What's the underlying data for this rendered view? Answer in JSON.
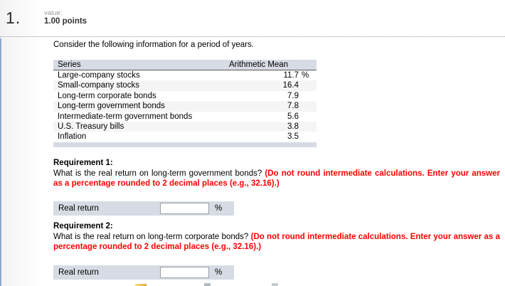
{
  "question": {
    "number": "1.",
    "value_label": "value:",
    "points": "1.00 points"
  },
  "intro": "Consider the following information for a period of years.",
  "table": {
    "headers": {
      "series": "Series",
      "mean": "Arithmetic Mean"
    },
    "rows": [
      {
        "label": "Large-company stocks",
        "value": "11.7",
        "suffix": "%"
      },
      {
        "label": "Small-company stocks",
        "value": "16.4",
        "suffix": ""
      },
      {
        "label": "Long-term corporate bonds",
        "value": "7.9",
        "suffix": ""
      },
      {
        "label": "Long-term government bonds",
        "value": "7.8",
        "suffix": ""
      },
      {
        "label": "Intermediate-term government bonds",
        "value": "5.6",
        "suffix": ""
      },
      {
        "label": "U.S. Treasury bills",
        "value": "3.8",
        "suffix": ""
      },
      {
        "label": "Inflation",
        "value": "3.5",
        "suffix": ""
      }
    ]
  },
  "requirements": [
    {
      "title": "Requirement 1:",
      "question": "What is the real return on long-term government bonds? ",
      "instruction": "(Do not round intermediate calculations. Enter your answer as a percentage rounded to 2 decimal places (e.g., 32.16).)",
      "answer_label": "Real return",
      "answer_value": "",
      "unit": "%"
    },
    {
      "title": "Requirement 2:",
      "question": "What is the real return on long-term corporate bonds? ",
      "instruction": "(Do not round intermediate calculations. Enter your answer as a percentage rounded to 2 decimal places (e.g., 32.16).)",
      "answer_label": "Real return",
      "answer_value": "",
      "unit": "%"
    }
  ],
  "colors": {
    "table_header_bg": "#d6dbe4",
    "row_alt_bg": "#f5f5f6",
    "instruction_red": "#fe0202",
    "left_accent_blue": "#8fa8d0"
  }
}
